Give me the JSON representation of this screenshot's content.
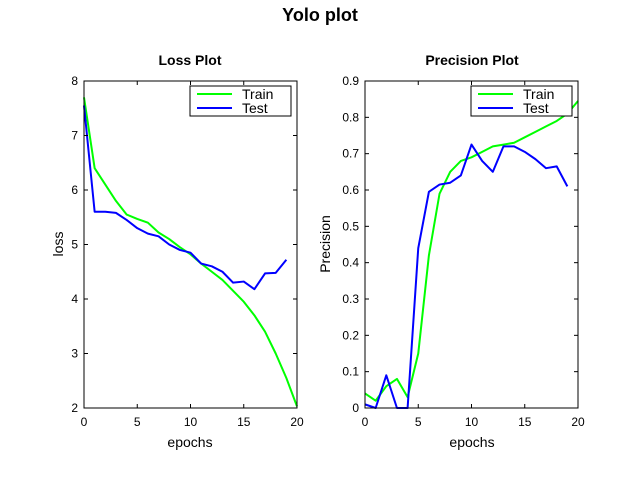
{
  "figure": {
    "title": "Yolo plot"
  },
  "chart_data": [
    {
      "type": "line",
      "title": "Loss Plot",
      "xlabel": "epochs",
      "ylabel": "loss",
      "xlim": [
        0,
        20
      ],
      "ylim": [
        2,
        8
      ],
      "xticks": [
        0,
        5,
        10,
        15,
        20
      ],
      "yticks": [
        2,
        3,
        4,
        5,
        6,
        7,
        8
      ],
      "grid": false,
      "legend": "top-right",
      "series": [
        {
          "name": "Train",
          "color": "#00ff00",
          "x": [
            0,
            1,
            2,
            3,
            4,
            5,
            6,
            7,
            8,
            9,
            10,
            11,
            12,
            13,
            14,
            15,
            16,
            17,
            18,
            19,
            20
          ],
          "y": [
            7.7,
            6.4,
            6.1,
            5.8,
            5.55,
            5.47,
            5.4,
            5.22,
            5.1,
            4.95,
            4.82,
            4.65,
            4.5,
            4.35,
            4.15,
            3.95,
            3.7,
            3.4,
            3.0,
            2.55,
            2.03
          ]
        },
        {
          "name": "Test",
          "color": "#0000ff",
          "x": [
            0,
            1,
            2,
            3,
            4,
            5,
            6,
            7,
            8,
            9,
            10,
            11,
            12,
            13,
            14,
            15,
            16,
            17,
            18,
            19
          ],
          "y": [
            7.55,
            5.6,
            5.6,
            5.58,
            5.45,
            5.3,
            5.2,
            5.15,
            5.0,
            4.9,
            4.85,
            4.65,
            4.6,
            4.5,
            4.3,
            4.32,
            4.18,
            4.47,
            4.48,
            4.72
          ]
        }
      ]
    },
    {
      "type": "line",
      "title": "Precision Plot",
      "xlabel": "epochs",
      "ylabel": "Precision",
      "xlim": [
        0,
        20
      ],
      "ylim": [
        0,
        0.9
      ],
      "xticks": [
        0,
        5,
        10,
        15,
        20
      ],
      "yticks": [
        0,
        0.1,
        0.2,
        0.3,
        0.4,
        0.5,
        0.6,
        0.7,
        0.8,
        0.9
      ],
      "grid": false,
      "legend": "top-right",
      "series": [
        {
          "name": "Train",
          "color": "#00ff00",
          "x": [
            0,
            1,
            2,
            3,
            4,
            5,
            6,
            7,
            8,
            9,
            10,
            11,
            12,
            13,
            14,
            15,
            16,
            17,
            18,
            19,
            20
          ],
          "y": [
            0.04,
            0.02,
            0.06,
            0.08,
            0.03,
            0.15,
            0.42,
            0.59,
            0.65,
            0.68,
            0.69,
            0.705,
            0.72,
            0.725,
            0.73,
            0.745,
            0.76,
            0.775,
            0.79,
            0.81,
            0.845
          ]
        },
        {
          "name": "Test",
          "color": "#0000ff",
          "x": [
            0,
            1,
            2,
            3,
            4,
            5,
            6,
            7,
            8,
            9,
            10,
            11,
            12,
            13,
            14,
            15,
            16,
            17,
            18,
            19
          ],
          "y": [
            0.01,
            0.0,
            0.09,
            0.0,
            0.0,
            0.44,
            0.595,
            0.615,
            0.62,
            0.64,
            0.725,
            0.68,
            0.65,
            0.72,
            0.72,
            0.705,
            0.685,
            0.66,
            0.665,
            0.61
          ]
        }
      ]
    }
  ]
}
